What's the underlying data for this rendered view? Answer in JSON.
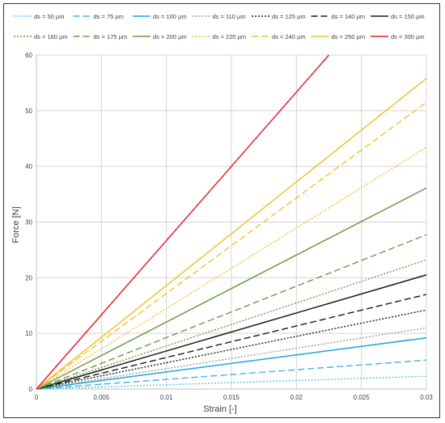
{
  "chart_data": {
    "type": "line",
    "title": "",
    "xlabel": "Strain [-]",
    "ylabel": "Force [N]",
    "xlim": [
      0,
      0.03
    ],
    "ylim": [
      0,
      60
    ],
    "x_ticks": [
      0,
      0.005,
      0.01,
      0.015,
      0.02,
      0.025,
      0.03
    ],
    "x_tick_labels": [
      "0",
      "0.005",
      "0.01",
      "0.015",
      "0.02",
      "0.025",
      "0.03"
    ],
    "y_ticks": [
      0,
      10,
      20,
      30,
      40,
      50,
      60
    ],
    "y_tick_labels": [
      "0",
      "10",
      "20",
      "30",
      "40",
      "50",
      "60"
    ],
    "grid": true,
    "legend_position": "top",
    "series": [
      {
        "name": "ds = 50 µm",
        "color": "#5bc6e8",
        "dash": "dot",
        "x": [
          0,
          0.03
        ],
        "y": [
          0,
          2.3
        ]
      },
      {
        "name": "ds = 75 µm",
        "color": "#3fb6e0",
        "dash": "dash",
        "x": [
          0,
          0.03
        ],
        "y": [
          0,
          5.2
        ]
      },
      {
        "name": "ds = 100 µm",
        "color": "#1aa7dc",
        "dash": "solid",
        "x": [
          0,
          0.03
        ],
        "y": [
          0,
          9.2
        ]
      },
      {
        "name": "ds = 110 µm",
        "color": "#9e9e9e",
        "dash": "dot",
        "x": [
          0,
          0.03
        ],
        "y": [
          0,
          11.0
        ]
      },
      {
        "name": "ds = 125 µm",
        "color": "#1a1a1a",
        "dash": "dot",
        "x": [
          0,
          0.03
        ],
        "y": [
          0,
          14.2
        ]
      },
      {
        "name": "ds = 140 µm",
        "color": "#1a1a1a",
        "dash": "dash",
        "x": [
          0,
          0.03
        ],
        "y": [
          0,
          17.0
        ]
      },
      {
        "name": "ds = 150 µm",
        "color": "#1a1a1a",
        "dash": "solid",
        "x": [
          0,
          0.03
        ],
        "y": [
          0,
          20.5
        ]
      },
      {
        "name": "ds = 160 µm",
        "color": "#6f9a46",
        "dash": "dot",
        "x": [
          0,
          0.03
        ],
        "y": [
          0,
          23.2
        ]
      },
      {
        "name": "ds = 175 µm",
        "color": "#6f9a46",
        "dash": "dash",
        "x": [
          0,
          0.03
        ],
        "y": [
          0,
          27.7
        ]
      },
      {
        "name": "ds = 200 µm",
        "color": "#6f9a46",
        "dash": "solid",
        "x": [
          0,
          0.03
        ],
        "y": [
          0,
          36.1
        ]
      },
      {
        "name": "ds = 220 µm",
        "color": "#f2c12e",
        "dash": "dot",
        "x": [
          0,
          0.03
        ],
        "y": [
          0,
          43.4
        ]
      },
      {
        "name": "ds = 240 µm",
        "color": "#f2c12e",
        "dash": "dash",
        "x": [
          0,
          0.03
        ],
        "y": [
          0,
          51.5
        ]
      },
      {
        "name": "ds = 250 µm",
        "color": "#f2c12e",
        "dash": "solid",
        "x": [
          0,
          0.03
        ],
        "y": [
          0,
          55.8
        ]
      },
      {
        "name": "ds = 300 µm",
        "color": "#e8202a",
        "dash": "solid",
        "x": [
          0,
          0.0225
        ],
        "y": [
          0,
          60
        ]
      }
    ]
  }
}
